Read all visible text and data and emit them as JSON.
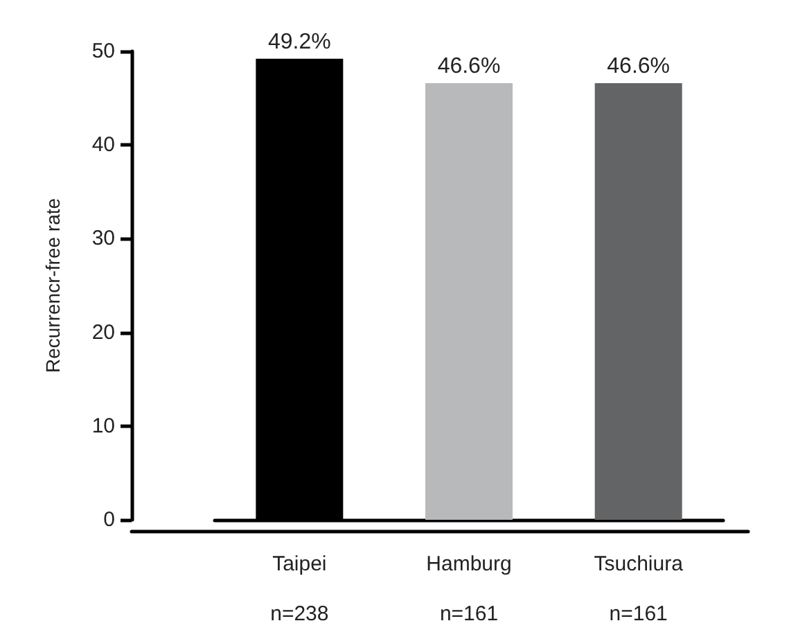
{
  "chart_data": {
    "type": "bar",
    "ylabel": "Recurrencr-free rate",
    "categories": [
      "Taipei\nn=238",
      "Hamburg\nn=161",
      "Tsuchiura\nn=161"
    ],
    "values": [
      49.2,
      46.6,
      46.6
    ],
    "colors": [
      "#000000",
      "#b8b9bb",
      "#636466"
    ],
    "value_labels": [
      "49.2%",
      "46.6%",
      "46.6%"
    ],
    "ylim": [
      0,
      50
    ],
    "yticks": [
      0,
      10,
      20,
      30,
      40,
      50
    ],
    "grid": false
  }
}
